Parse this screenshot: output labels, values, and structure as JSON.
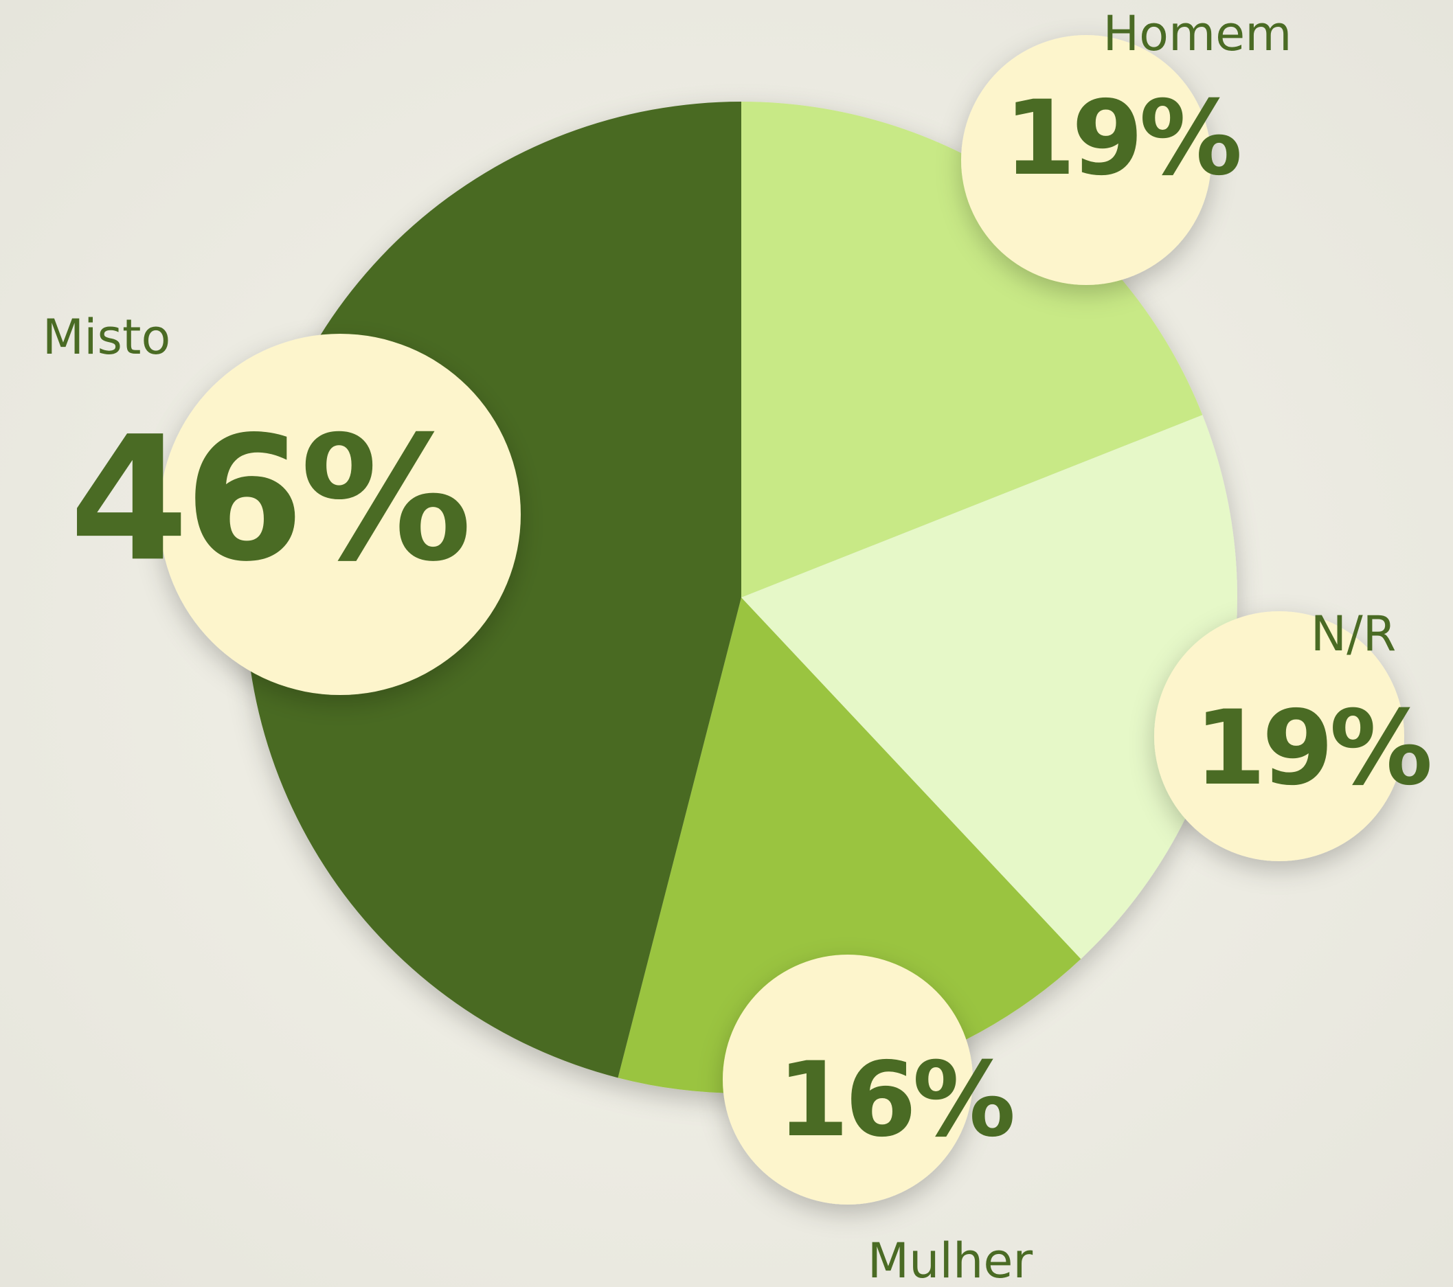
{
  "chart_data": {
    "type": "pie",
    "categories": [
      "Homem",
      "N/R",
      "Mulher",
      "Misto"
    ],
    "values": [
      19,
      19,
      16,
      46
    ],
    "value_labels": [
      "19%",
      "19%",
      "16%",
      "46%"
    ],
    "colors": [
      "#c8e986",
      "#e6f8c8",
      "#9ac440",
      "#4a6b24"
    ]
  }
}
